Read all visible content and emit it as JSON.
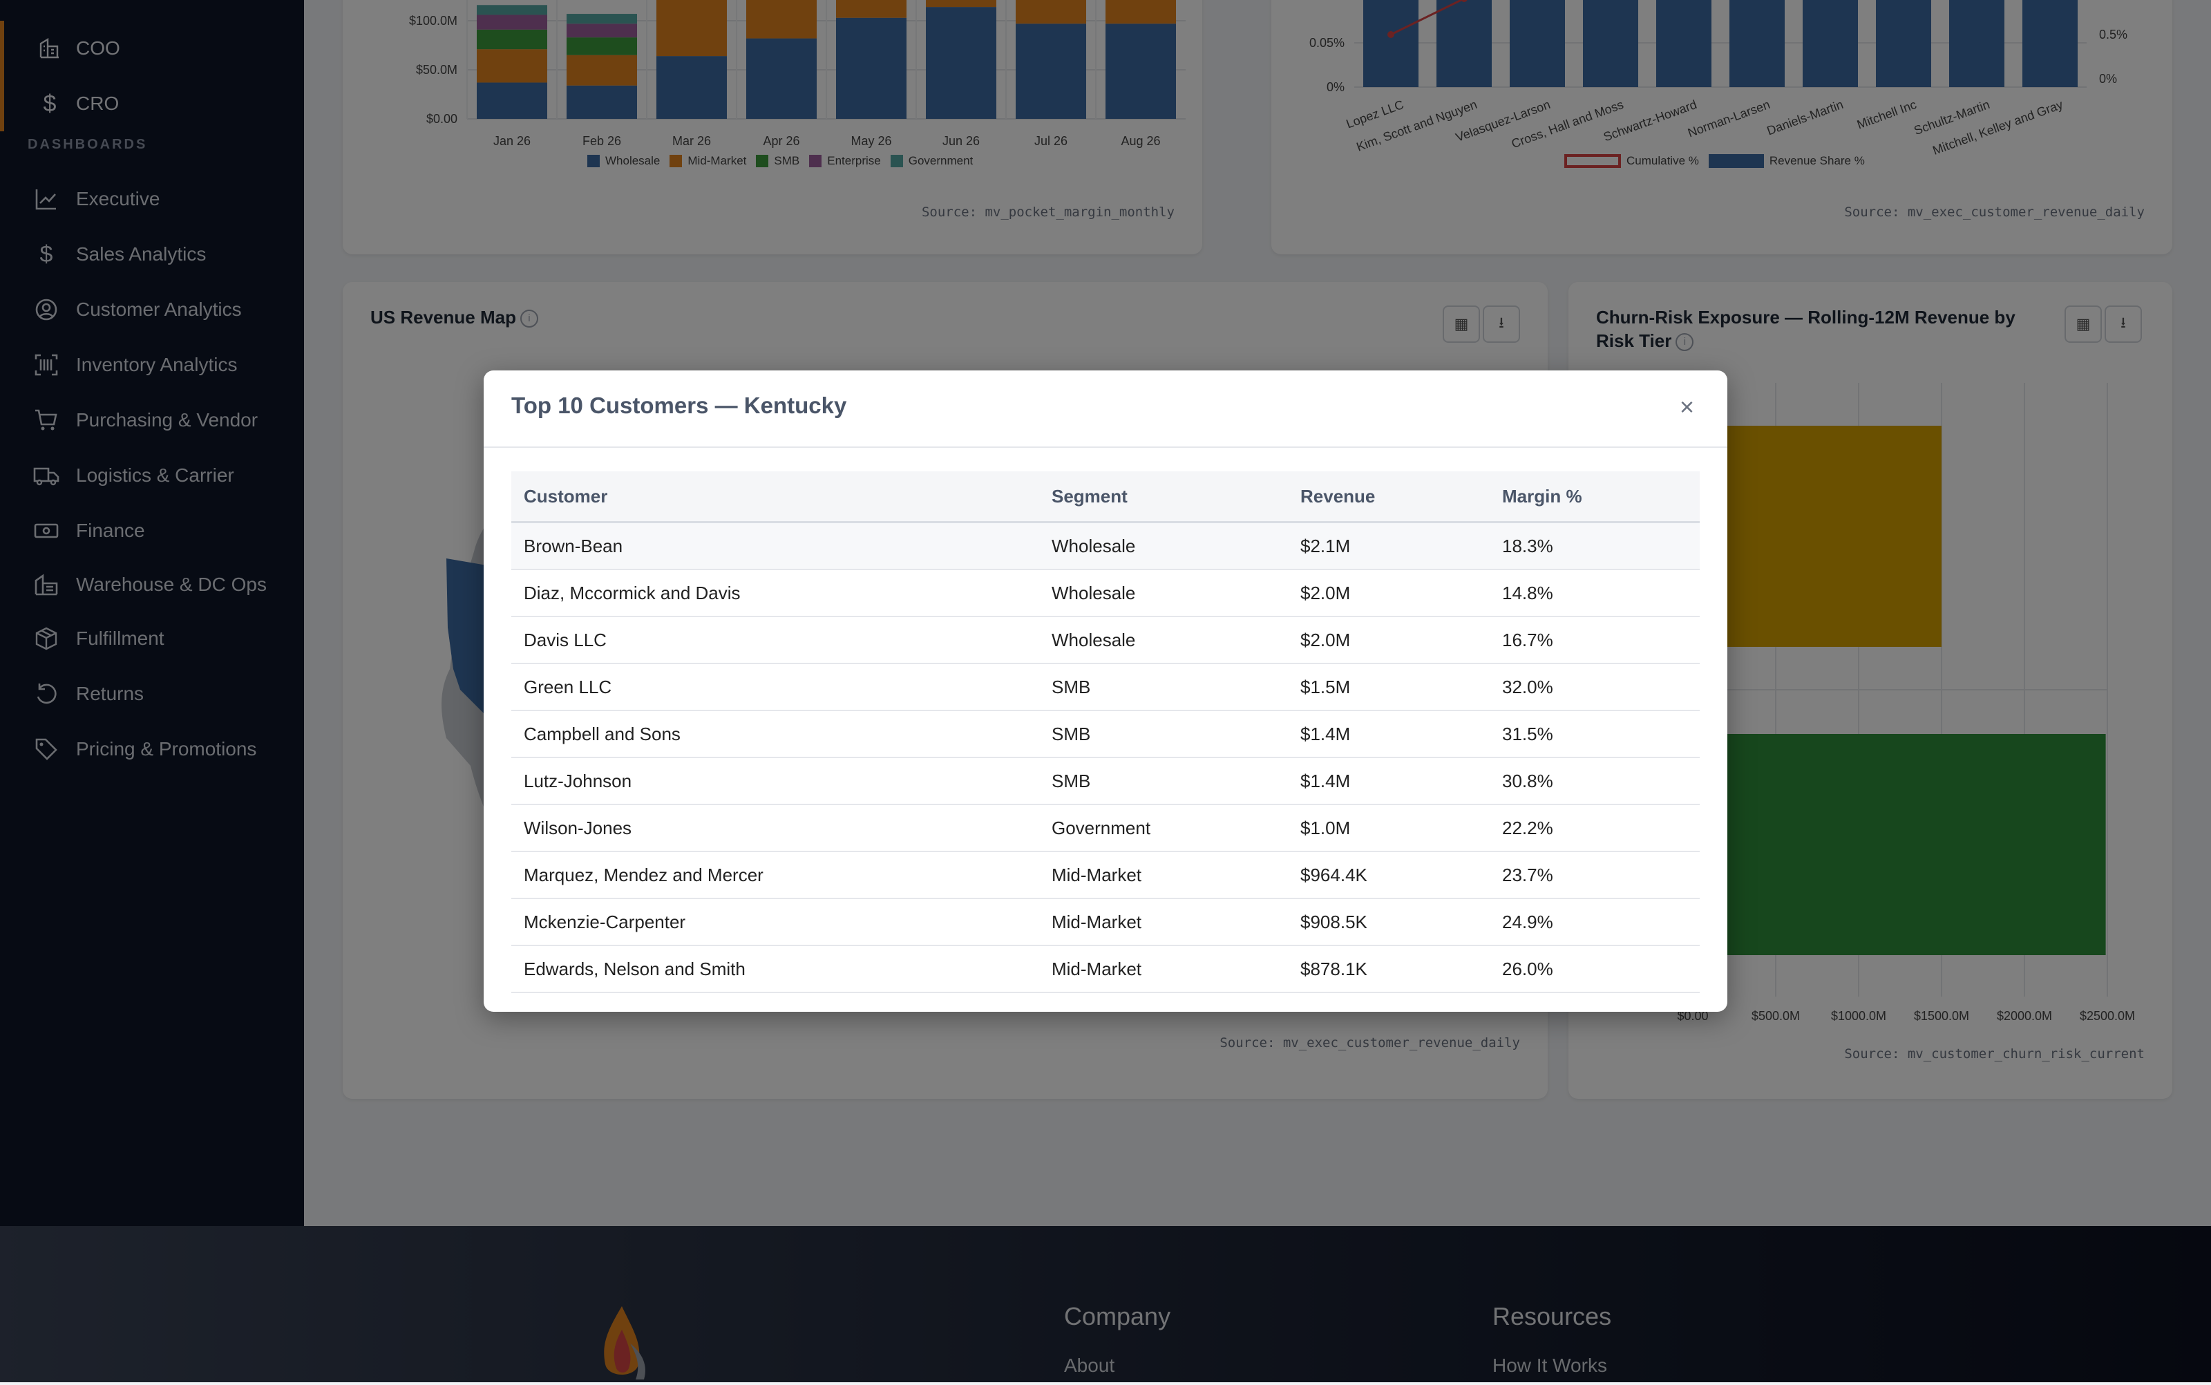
{
  "sidebar": {
    "roles": [
      {
        "icon": "building-icon",
        "label": "COO"
      },
      {
        "icon": "dollar-icon",
        "label": "CRO"
      }
    ],
    "section_title": "DASHBOARDS",
    "items": [
      {
        "icon": "chart-line-icon",
        "label": "Executive"
      },
      {
        "icon": "dollar-icon",
        "label": "Sales Analytics"
      },
      {
        "icon": "user-circle-icon",
        "label": "Customer Analytics"
      },
      {
        "icon": "barcode-scan-icon",
        "label": "Inventory Analytics"
      },
      {
        "icon": "cart-icon",
        "label": "Purchasing & Vendor"
      },
      {
        "icon": "truck-icon",
        "label": "Logistics & Carrier"
      },
      {
        "icon": "cash-icon",
        "label": "Finance"
      },
      {
        "icon": "warehouse-icon",
        "label": "Warehouse & DC Ops"
      },
      {
        "icon": "box-icon",
        "label": "Fulfillment"
      },
      {
        "icon": "undo-icon",
        "label": "Returns"
      },
      {
        "icon": "tag-icon",
        "label": "Pricing & Promotions"
      }
    ]
  },
  "cards": {
    "margin": {
      "source": "Source: mv_pocket_margin_monthly"
    },
    "pareto": {
      "source": "Source: mv_exec_customer_revenue_daily"
    },
    "map": {
      "title": "US Revenue Map",
      "source": "Source: mv_exec_customer_revenue_daily"
    },
    "churn": {
      "title": "Churn-Risk Exposure — Rolling-12M Revenue by Risk Tier",
      "source": "Source: mv_customer_churn_risk_current"
    }
  },
  "chart_data": [
    {
      "type": "bar",
      "stacked": true,
      "categories": [
        "Jan 26",
        "Feb 26",
        "Mar 26",
        "Apr 26",
        "May 26",
        "Jun 26",
        "Jul 26",
        "Aug 26"
      ],
      "y_ticks": [
        "$0.00",
        "$50.0M",
        "$100.0M"
      ],
      "series": [
        {
          "name": "Wholesale",
          "color": "#3d6aa2",
          "values": [
            37,
            34,
            64,
            82,
            103,
            114,
            97,
            97
          ]
        },
        {
          "name": "Mid-Market",
          "color": "#e0821f",
          "values": [
            34,
            31,
            58,
            52,
            41,
            43,
            44,
            40
          ]
        },
        {
          "name": "SMB",
          "color": "#3c9a3c",
          "values": [
            20,
            18,
            0,
            0,
            0,
            0,
            0,
            0
          ]
        },
        {
          "name": "Enterprise",
          "color": "#9c5f9c",
          "values": [
            15,
            14,
            0,
            0,
            0,
            0,
            0,
            0
          ]
        },
        {
          "name": "Government",
          "color": "#54a6a3",
          "values": [
            10,
            10,
            0,
            0,
            0,
            0,
            0,
            0
          ]
        }
      ],
      "legend": "bottom",
      "grid": true
    },
    {
      "type": "bar",
      "categories": [
        "Lopez LLC",
        "Kim, Scott and Nguyen",
        "Velasquez-Larson",
        "Cross, Hall and Moss",
        "Schwartz-Howard",
        "Norman-Larsen",
        "Daniels-Martin",
        "Mitchell Inc",
        "Schultz-Martin",
        "Mitchell, Kelley and Gray"
      ],
      "y_ticks_left": [
        "0%",
        "0.05%"
      ],
      "y_ticks_right": [
        "0%",
        "0.5%"
      ],
      "series": [
        {
          "name": "Revenue Share %",
          "color": "#3d6aa2",
          "kind": "bar"
        },
        {
          "name": "Cumulative %",
          "color": "#d64545",
          "kind": "line"
        }
      ],
      "legend": "bottom"
    },
    {
      "type": "bar",
      "orientation": "horizontal",
      "title": "Churn-Risk Exposure — Rolling-12M Revenue by Risk Tier",
      "x_ticks": [
        "$0.00",
        "$500.0M",
        "$1000.0M",
        "$1500.0M",
        "$2000.0M",
        "$2500.0M"
      ],
      "xlim": [
        0,
        2500
      ],
      "series": [
        {
          "color": "#d4a000",
          "value": 1500
        },
        {
          "color": "#2e8f3a",
          "value": 2490
        }
      ]
    }
  ],
  "modal": {
    "title": "Top 10 Customers — Kentucky",
    "close_label": "×",
    "columns": [
      "Customer",
      "Segment",
      "Revenue",
      "Margin %"
    ],
    "rows": [
      [
        "Brown-Bean",
        "Wholesale",
        "$2.1M",
        "18.3%"
      ],
      [
        "Diaz, Mccormick and Davis",
        "Wholesale",
        "$2.0M",
        "14.8%"
      ],
      [
        "Davis LLC",
        "Wholesale",
        "$2.0M",
        "16.7%"
      ],
      [
        "Green LLC",
        "SMB",
        "$1.5M",
        "32.0%"
      ],
      [
        "Campbell and Sons",
        "SMB",
        "$1.4M",
        "31.5%"
      ],
      [
        "Lutz-Johnson",
        "SMB",
        "$1.4M",
        "30.8%"
      ],
      [
        "Wilson-Jones",
        "Government",
        "$1.0M",
        "22.2%"
      ],
      [
        "Marquez, Mendez and Mercer",
        "Mid-Market",
        "$964.4K",
        "23.7%"
      ],
      [
        "Mckenzie-Carpenter",
        "Mid-Market",
        "$908.5K",
        "24.9%"
      ],
      [
        "Edwards, Nelson and Smith",
        "Mid-Market",
        "$878.1K",
        "26.0%"
      ]
    ]
  },
  "footer": {
    "company": {
      "heading": "Company",
      "link": "About"
    },
    "resources": {
      "heading": "Resources",
      "link": "How It Works"
    }
  }
}
